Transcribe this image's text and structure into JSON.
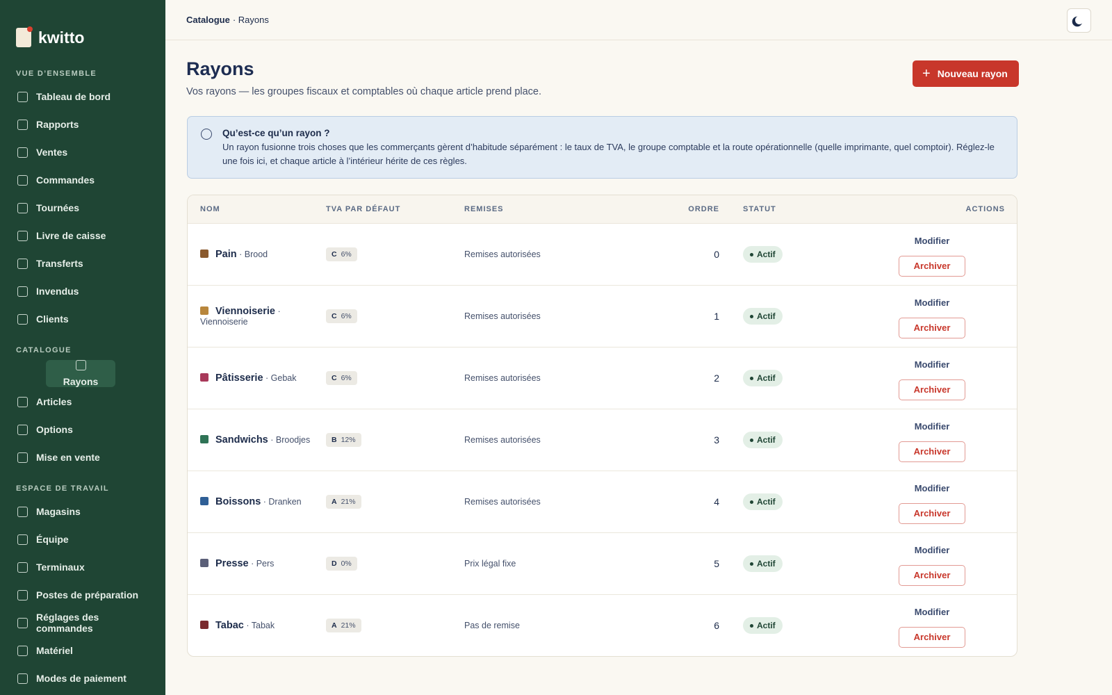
{
  "sidebar": {
    "brand": "kwitto",
    "sections": [
      {
        "title": "VUE D’ENSEMBLE",
        "items": [
          "Tableau de bord",
          "Rapports",
          "Ventes",
          "Commandes",
          "Tournées",
          "Livre de caisse",
          "Transferts",
          "Invendus",
          "Clients"
        ]
      },
      {
        "title": "CATALOGUE",
        "items": [
          "Rayons",
          "Articles",
          "Options",
          "Mise en vente"
        ]
      },
      {
        "title": "ESPACE DE TRAVAIL",
        "items": [
          "Magasins",
          "Équipe",
          "Terminaux",
          "Postes de préparation",
          "Réglages des commandes",
          "Matériel",
          "Modes de paiement"
        ]
      }
    ],
    "active": "Rayons"
  },
  "header": {
    "breadcrumb": [
      "Catalogue",
      "· Rayons"
    ]
  },
  "page": {
    "title": "Rayons",
    "subtitle": "Vos rayons — les groupes fiscaux et comptables où chaque article prend place.",
    "new_button": "Nouveau rayon"
  },
  "info": {
    "title": "Qu’est-ce qu’un rayon ?",
    "text": "Un rayon fusionne trois choses que les commerçants gèrent d’habitude séparément : le taux de TVA, le groupe comptable et la route opérationnelle (quelle imprimante, quel comptoir). Réglez-le une fois ici, et chaque article à l’intérieur hérite de ces règles."
  },
  "table": {
    "columns": [
      "NOM",
      "TVA PAR DÉFAUT",
      "REMISES",
      "ORDRE",
      "STATUT",
      "ACTIONS"
    ],
    "rows": [
      {
        "color": "#8a5a2e",
        "name": "Pain",
        "alt": "· Brood",
        "tva_code": "C",
        "tva_rate": "6%",
        "remises": "Remises autorisées",
        "ordre": 0,
        "statut": "Actif",
        "edit": "Modifier",
        "archive": "Archiver"
      },
      {
        "color": "#b8863c",
        "name": "Viennoiserie",
        "alt": "· Viennoiserie",
        "tva_code": "C",
        "tva_rate": "6%",
        "remises": "Remises autorisées",
        "ordre": 1,
        "statut": "Actif",
        "edit": "Modifier",
        "archive": "Archiver"
      },
      {
        "color": "#a8395a",
        "name": "Pâtisserie",
        "alt": "· Gebak",
        "tva_code": "C",
        "tva_rate": "6%",
        "remises": "Remises autorisées",
        "ordre": 2,
        "statut": "Actif",
        "edit": "Modifier",
        "archive": "Archiver"
      },
      {
        "color": "#2f7356",
        "name": "Sandwichs",
        "alt": "· Broodjes",
        "tva_code": "B",
        "tva_rate": "12%",
        "remises": "Remises autorisées",
        "ordre": 3,
        "statut": "Actif",
        "edit": "Modifier",
        "archive": "Archiver"
      },
      {
        "color": "#2f5f96",
        "name": "Boissons",
        "alt": "· Dranken",
        "tva_code": "A",
        "tva_rate": "21%",
        "remises": "Remises autorisées",
        "ordre": 4,
        "statut": "Actif",
        "edit": "Modifier",
        "archive": "Archiver"
      },
      {
        "color": "#5b5f78",
        "name": "Presse",
        "alt": "· Pers",
        "tva_code": "D",
        "tva_rate": "0%",
        "remises": "Prix légal fixe",
        "ordre": 5,
        "statut": "Actif",
        "edit": "Modifier",
        "archive": "Archiver"
      },
      {
        "color": "#7a2a2e",
        "name": "Tabac",
        "alt": "· Tabak",
        "tva_code": "A",
        "tva_rate": "21%",
        "remises": "Pas de remise",
        "ordre": 6,
        "statut": "Actif",
        "edit": "Modifier",
        "archive": "Archiver"
      }
    ]
  }
}
